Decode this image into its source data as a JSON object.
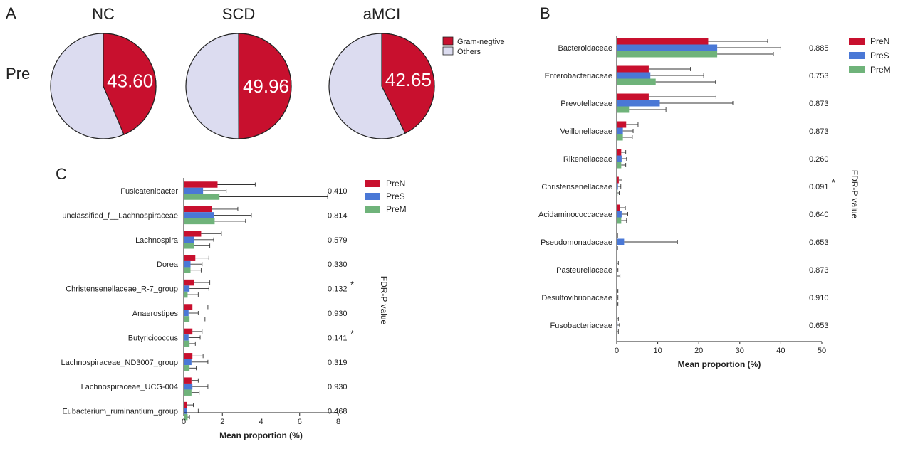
{
  "colors": {
    "preN": "#c8102e",
    "preS": "#4a78d6",
    "preM": "#6fb37a",
    "gram_negative": "#c8102e",
    "others": "#dcdcf0",
    "axis": "#222222"
  },
  "panel_a": {
    "letter": "A",
    "row_label": "Pre",
    "legend": [
      {
        "label": "Gram-negtive",
        "color": "#c8102e"
      },
      {
        "label": "Others",
        "color": "#dcdcf0"
      }
    ]
  },
  "panel_b": {
    "letter": "B"
  },
  "panel_c": {
    "letter": "C"
  },
  "chart_data": [
    {
      "id": "pie_nc",
      "type": "pie",
      "title": "NC",
      "slices": [
        {
          "label": "Gram-negtive",
          "value": 43.6,
          "display": "43.60"
        },
        {
          "label": "Others",
          "value": 56.4
        }
      ]
    },
    {
      "id": "pie_scd",
      "type": "pie",
      "title": "SCD",
      "slices": [
        {
          "label": "Gram-negtive",
          "value": 49.96,
          "display": "49.96"
        },
        {
          "label": "Others",
          "value": 50.04
        }
      ]
    },
    {
      "id": "pie_amci",
      "type": "pie",
      "title": "aMCI",
      "slices": [
        {
          "label": "Gram-negtive",
          "value": 42.65,
          "display": "42.65"
        },
        {
          "label": "Others",
          "value": 57.35
        }
      ]
    },
    {
      "id": "bar_b",
      "type": "bar",
      "orientation": "horizontal",
      "xlabel": "Mean proportion (%)",
      "p_label": "FDR-P value",
      "xlim": [
        0,
        50
      ],
      "xticks": [
        "0",
        "10",
        "20",
        "30",
        "40",
        "50"
      ],
      "categories": [
        "Bacteroidaceae",
        "Enterobacteriaceae",
        "Prevotellaceae",
        "Veillonellaceae",
        "Rikenellaceae",
        "Christensenellaceae",
        "Acidaminococcaceae",
        "Pseudomonadaceae",
        "Pasteurellaceae",
        "Desulfovibrionaceae",
        "Fusobacteriaceae"
      ],
      "p_values": [
        "0.885",
        "0.753",
        "0.873",
        "0.873",
        "0.260",
        "0.091",
        "0.640",
        "0.653",
        "0.873",
        "0.910",
        "0.653"
      ],
      "significant": [
        false,
        false,
        false,
        false,
        false,
        true,
        false,
        false,
        false,
        false,
        false
      ],
      "series": [
        {
          "name": "PreN",
          "values": [
            22.3,
            7.8,
            7.8,
            2.3,
            1.1,
            0.5,
            0.8,
            0.1,
            0.1,
            0.1,
            0.1
          ],
          "errors": [
            14.5,
            10.2,
            16.4,
            2.9,
            1.1,
            0.8,
            1.3,
            0.1,
            0.3,
            0.2,
            0.3
          ]
        },
        {
          "name": "PreS",
          "values": [
            24.5,
            8.2,
            10.5,
            1.5,
            1.2,
            0.3,
            1.2,
            1.8,
            0.1,
            0.1,
            0.2
          ],
          "errors": [
            15.5,
            13.0,
            17.8,
            2.5,
            1.2,
            0.7,
            1.5,
            13.0,
            0.2,
            0.2,
            0.5
          ]
        },
        {
          "name": "PreM",
          "values": [
            24.5,
            9.5,
            3.0,
            1.5,
            1.1,
            0.2,
            1.1,
            0.1,
            0.1,
            0.1,
            0.1
          ],
          "errors": [
            13.7,
            14.6,
            9.0,
            2.3,
            1.1,
            0.4,
            1.3,
            0.1,
            0.7,
            0.2,
            0.3
          ]
        }
      ]
    },
    {
      "id": "bar_c",
      "type": "bar",
      "orientation": "horizontal",
      "xlabel": "Mean proportion (%)",
      "p_label": "FDR-P value",
      "xlim": [
        0,
        8
      ],
      "xticks": [
        "0",
        "2",
        "4",
        "6",
        "8"
      ],
      "categories": [
        "Fusicatenibacter",
        "unclassified_f__Lachnospiraceae",
        "Lachnospira",
        "Dorea",
        "Christensenellaceae_R-7_group",
        "Anaerostipes",
        "Butyricicoccus",
        "Lachnospiraceae_ND3007_group",
        "Lachnospiraceae_UCG-004",
        "Eubacterium_ruminantium_group"
      ],
      "p_values": [
        "0.410",
        "0.814",
        "0.579",
        "0.330",
        "0.132",
        "0.930",
        "0.141",
        "0.319",
        "0.930",
        "0.468"
      ],
      "significant": [
        false,
        false,
        false,
        false,
        true,
        false,
        true,
        false,
        false,
        false
      ],
      "series": [
        {
          "name": "PreN",
          "values": [
            1.75,
            1.45,
            0.9,
            0.6,
            0.55,
            0.45,
            0.45,
            0.45,
            0.4,
            0.15
          ],
          "errors": [
            1.95,
            1.35,
            1.05,
            0.7,
            0.8,
            0.8,
            0.5,
            0.55,
            0.35,
            0.35
          ]
        },
        {
          "name": "PreS",
          "values": [
            1.0,
            1.55,
            0.55,
            0.35,
            0.3,
            0.25,
            0.25,
            0.4,
            0.45,
            0.15
          ],
          "errors": [
            1.2,
            1.95,
            1.0,
            0.6,
            1.0,
            0.5,
            0.6,
            0.85,
            0.8,
            0.6
          ]
        },
        {
          "name": "PreM",
          "values": [
            1.85,
            1.6,
            0.55,
            0.35,
            0.2,
            0.3,
            0.3,
            0.3,
            0.4,
            0.2
          ],
          "errors": [
            5.6,
            1.6,
            0.8,
            0.55,
            0.55,
            0.8,
            0.3,
            0.35,
            0.4,
            0.1
          ]
        }
      ]
    }
  ]
}
